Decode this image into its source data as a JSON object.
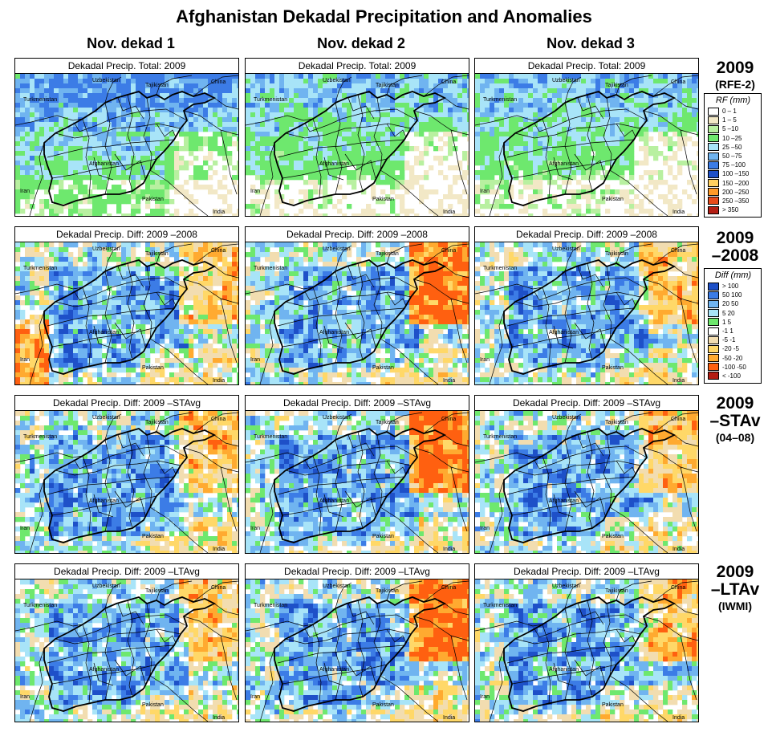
{
  "title": "Afghanistan Dekadal Precipitation and Anomalies",
  "columns": [
    "Nov. dekad 1",
    "Nov. dekad 2",
    "Nov. dekad 3"
  ],
  "rows": [
    {
      "panel_title": "Dekadal Precip. Total: 2009",
      "label_main": "2009",
      "label_sub": "(RFE-2)",
      "scheme": "rf"
    },
    {
      "panel_title": "Dekadal Precip. Diff:  2009 –2008",
      "label_main": "2009\n–2008",
      "label_sub": "",
      "scheme": "diff"
    },
    {
      "panel_title": "Dekadal Precip. Diff:  2009 –STAvg",
      "label_main": "2009\n–STAv",
      "label_sub": "(04–08)",
      "scheme": "diff"
    },
    {
      "panel_title": "Dekadal Precip. Diff:  2009 –LTAvg",
      "label_main": "2009\n–LTAv",
      "label_sub": "(IWMI)",
      "scheme": "diff"
    }
  ],
  "map_labels": {
    "uzbekistan": "Uzbekistan",
    "tajikistan": "Tajikistan",
    "china": "China",
    "turkmenistan": "Turkmenistan",
    "afghanistan": "Afghanistan",
    "iran": "Iran",
    "pakistan": "Pakistan",
    "india": "India"
  },
  "legend_rf": {
    "title": "RF (mm)",
    "items": [
      {
        "label": "0 – 1",
        "color": "#ffffff"
      },
      {
        "label": "1 – 5",
        "color": "#f2e8c6"
      },
      {
        "label": "5 –10",
        "color": "#b8f0a0"
      },
      {
        "label": "10 –25",
        "color": "#6ee86e"
      },
      {
        "label": "25 –50",
        "color": "#a8e4f8"
      },
      {
        "label": "50 –75",
        "color": "#70b4f0"
      },
      {
        "label": "75 –100",
        "color": "#3c7ce6"
      },
      {
        "label": "100 –150",
        "color": "#1e50c8"
      },
      {
        "label": "150 –200",
        "color": "#ffd060"
      },
      {
        "label": "200 –250",
        "color": "#ff9a28"
      },
      {
        "label": "250 –350",
        "color": "#e84a1a"
      },
      {
        "label": "> 350",
        "color": "#b41e14"
      }
    ]
  },
  "legend_diff": {
    "title": "Diff (mm)",
    "items": [
      {
        "label": "> 100",
        "color": "#1e50c8"
      },
      {
        "label": "50  100",
        "color": "#3c7ce6"
      },
      {
        "label": "20  50",
        "color": "#70b4f0"
      },
      {
        "label": "5  20",
        "color": "#a8e4f8"
      },
      {
        "label": "1  5",
        "color": "#6ee86e"
      },
      {
        "label": "-1  1",
        "color": "#ffffff"
      },
      {
        "label": "-5  -1",
        "color": "#f2ddb0"
      },
      {
        "label": "-20  -5",
        "color": "#ffd868"
      },
      {
        "label": "-50  -20",
        "color": "#ffaa30"
      },
      {
        "label": "-100  -50",
        "color": "#ff6010"
      },
      {
        "label": "< -100",
        "color": "#b41e14"
      }
    ]
  }
}
